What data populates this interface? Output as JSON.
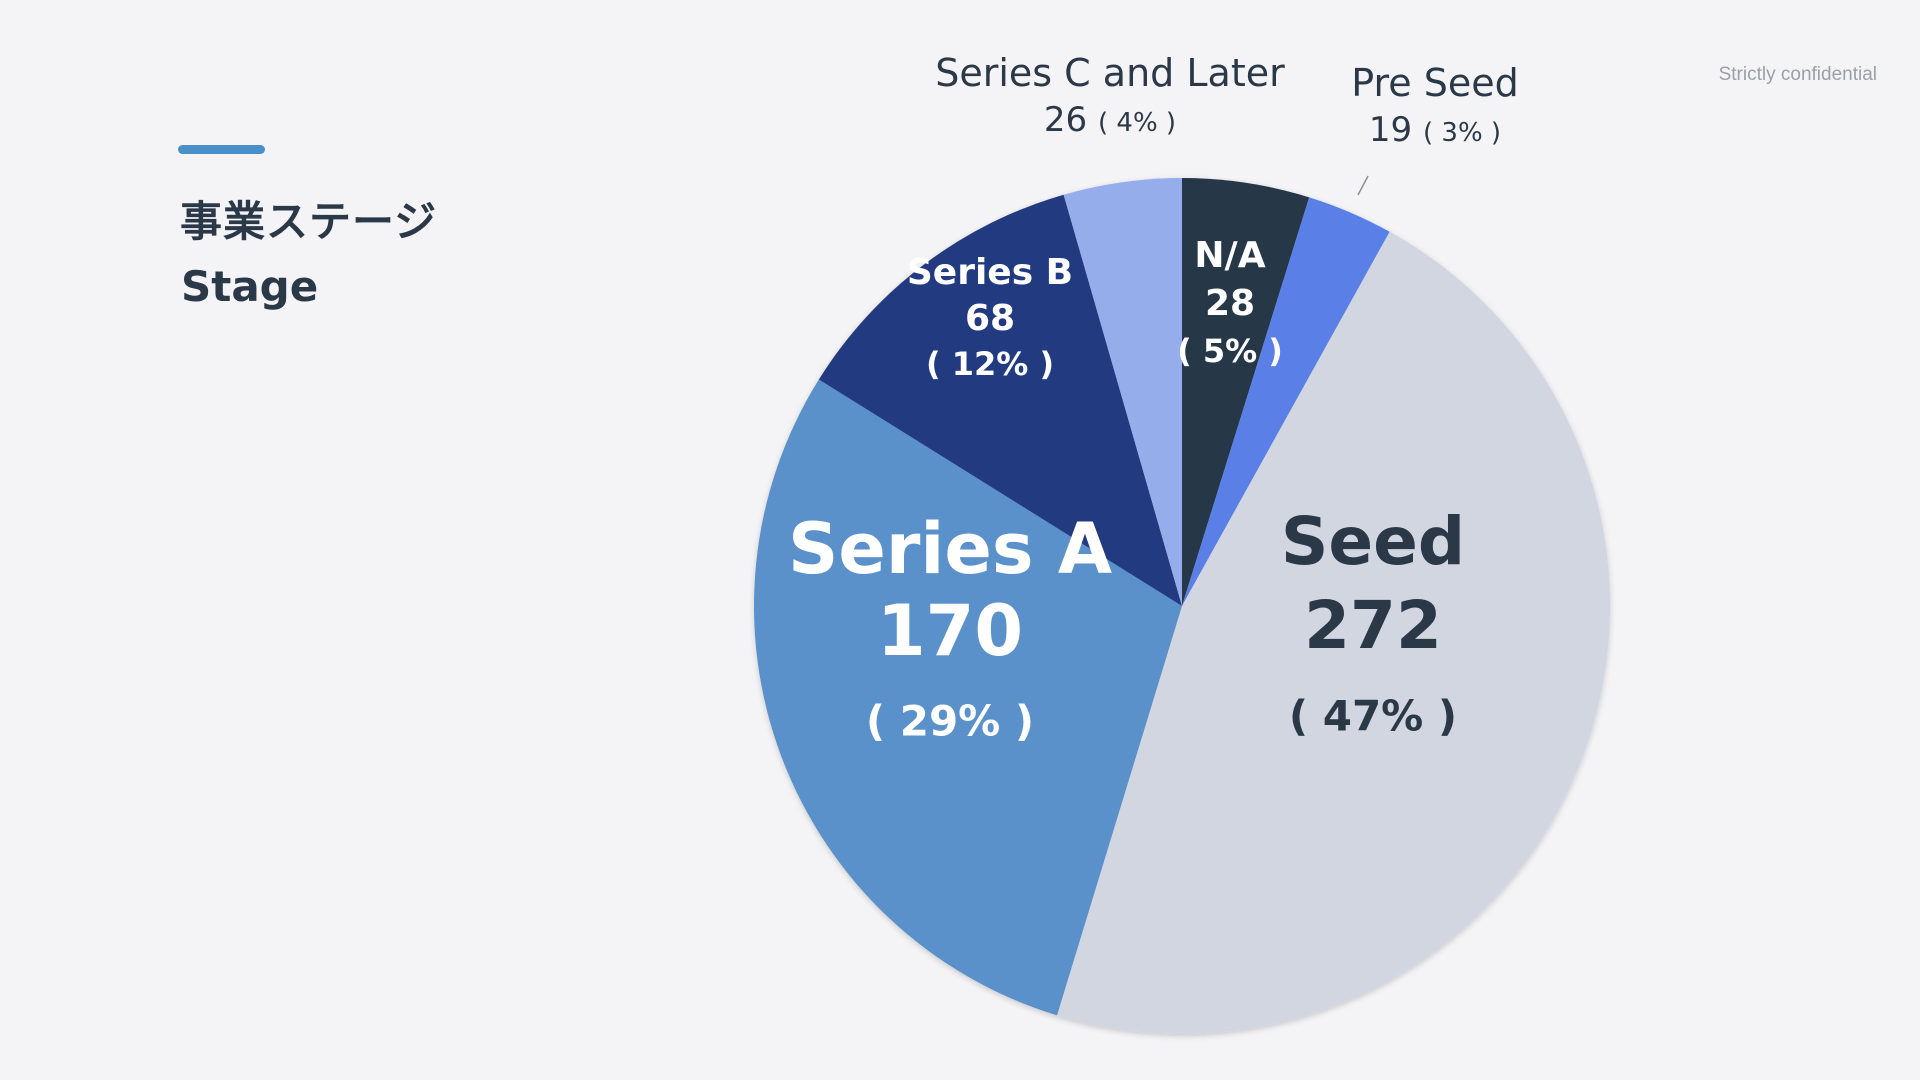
{
  "header": {
    "title_jp": "事業ステージ",
    "title_en": "Stage",
    "confidential": "Strictly confidential",
    "accent_color": "#4a90c8"
  },
  "chart_data": {
    "type": "pie",
    "slices": [
      {
        "label": "N/A",
        "value": 28,
        "percent_text": "( 5% )",
        "color": "#283847"
      },
      {
        "label": "Pre Seed",
        "value": 19,
        "percent_text": "( 3% )",
        "color": "#5a80e8"
      },
      {
        "label": "Seed",
        "value": 272,
        "percent_text": "( 47% )",
        "color": "#d2d6e0"
      },
      {
        "label": "Series A",
        "value": 170,
        "percent_text": "( 29% )",
        "color": "#5a91ca"
      },
      {
        "label": "Series B",
        "value": 68,
        "percent_text": "( 12% )",
        "color": "#243a80"
      },
      {
        "label": "Series C and Later",
        "value": 26,
        "percent_text": "( 4% )",
        "color": "#96adec"
      }
    ]
  }
}
